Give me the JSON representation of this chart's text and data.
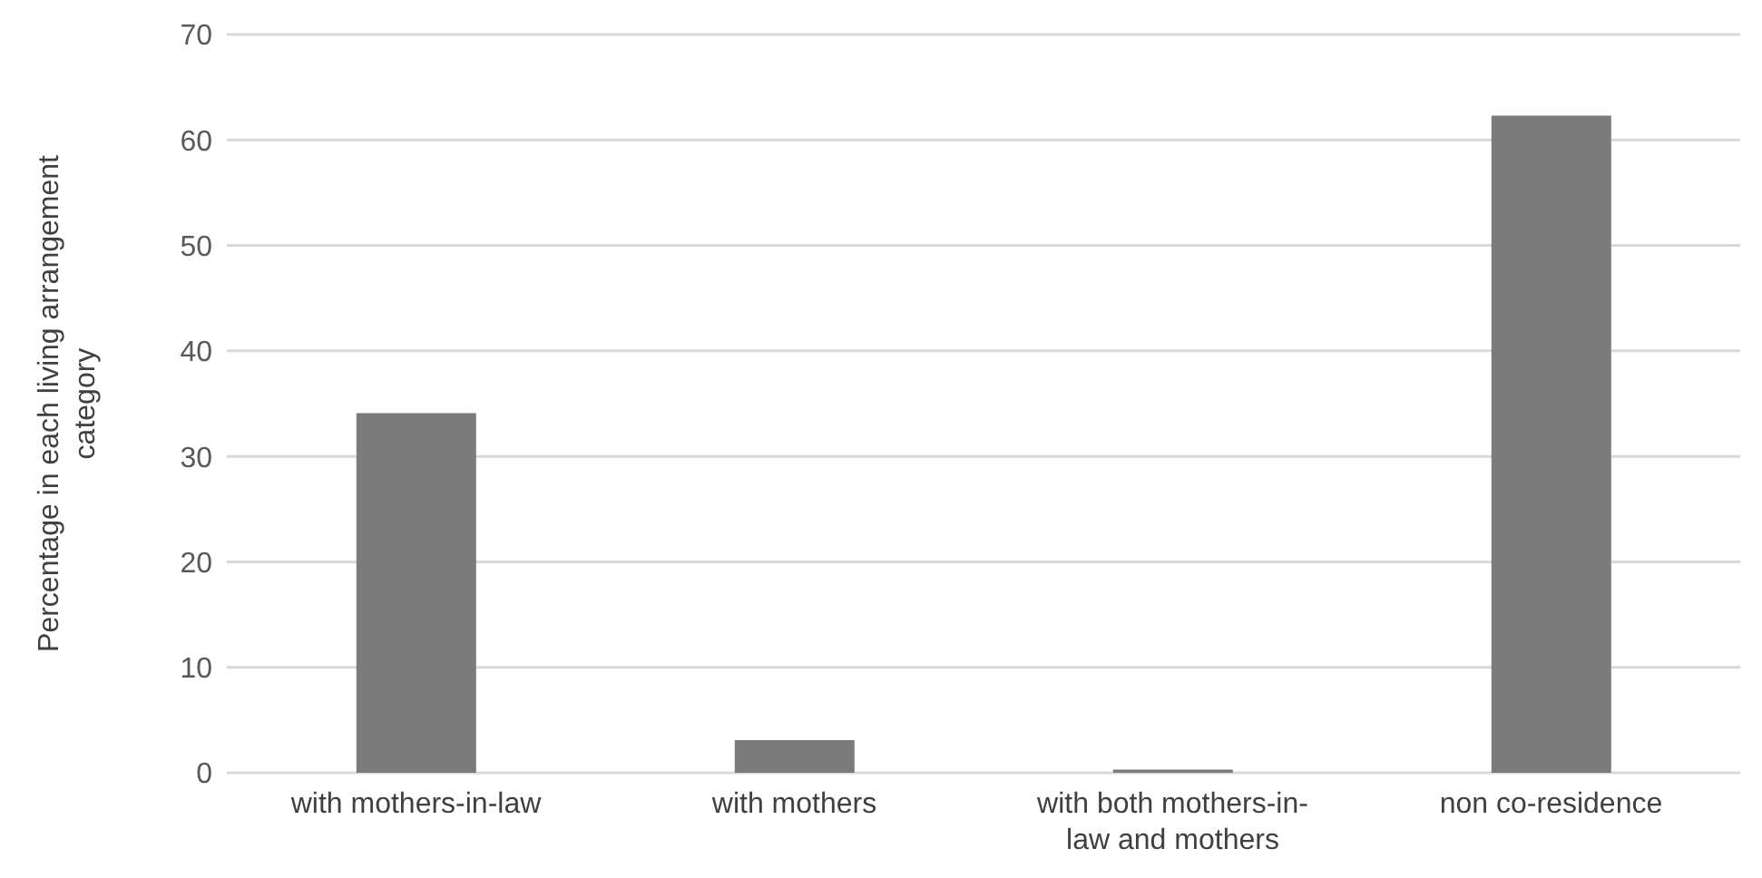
{
  "chart_data": {
    "type": "bar",
    "ylabel": "Percentage in each living arrangement category",
    "categories": [
      "with mothers-in-law",
      "with mothers",
      "with both mothers-in-law and mothers",
      "non co-residence"
    ],
    "values": [
      34.1,
      3.1,
      0.3,
      62.3
    ],
    "color": "#7b7b7b",
    "ylim": [
      0,
      70
    ],
    "yticks": [
      0,
      10,
      20,
      30,
      40,
      50,
      60,
      70
    ],
    "grid": "y"
  }
}
